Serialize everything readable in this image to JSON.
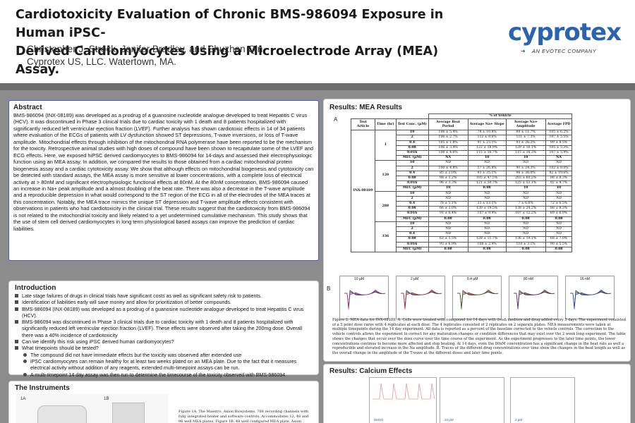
{
  "header": {
    "title_line1": "Cardiotoxicity Evaluation of Chronic BMS-986094 Exposure in Human iPSC-",
    "title_line2": "Derived Cardiomyocytes Using a Microelectrode Array (MEA) Assay.",
    "authors": "Christopher J. Strock, Jenifer Bradley, and Shuzhen Qin",
    "affiliation": "Cyprotex US, LLC.  Watertown, MA."
  },
  "logo": {
    "name": "cyprotex",
    "tagline": "AN EVOTEC COMPANY",
    "color": "#2a63b0"
  },
  "abstract": {
    "heading": "Abstract",
    "body": "BMS-986094 (INX-08189) was developed as a prodrug of a guanosine nucleotide analogue developed to treat Hepatitis C virus (HCV).  It was discontinued in Phase 3 clinical trials due to cardiac toxicity with 1 death and 8 patients hospitalized with significantly reduced left ventricular ejection fraction (LVEF).  Further analysis has shown cardiotoxic effects in 14 of 34 patients where evaluation of the ECGs of patients with LV dysfunction showed ST depressions, T-wave inversions, or loss of T-wave amplitude.  Mitochondrial effects through inhibition of the mitochondrial RNA polymerase have been reported to be the mechanism for the toxicity.  Retrospective animal studies with high doses of compound have been shown to recapitulate some of the LVEF and ECG effects.  Here, we exposed hiPSC derived cardiomyocytes to BMS-986094 for 14-days and assessed their electrophysiologic function using an MEA assay. In addition, we compared the results to  those obtained from a cardiac mitochondrial protein biogenesis assay and a cardiac cytotoxicity assay.  We show that although effects on mitochondrial biogenesis and cytotoxicity can be detected with standard assays, the MEA assay is more sensitive at lower concentrations, with a complete loss of electrical activity at > 80nM and significant electrophysiologic functional effects at 80nM.   At the 80nM concentration, BMS-986094 caused an increase in Na+ peak amplitude and a almost doubling of the beat rate.  There was also a decrease in the T-wave amplitude and a reproducible depression in what would correspond to the ST region of the ECG in all of the electrodes of the MEA traces at this concentration.  Notably, the MEA trace mimics the unique ST depression and T-wave amplitude effects consistent with observations in patients who had cardiotoxicity in the clinical trial.  These results suggest that the cardiotoxicity from BMS-986094 is not related to the mitochondrial toxicity and likely related to a yet undetermined cumulative mechanism.  This study shows that the use of stem cell derived cardiomyocytes in long term physiological based assays can improve the prediction of cardiac liabilities."
  },
  "introduction": {
    "heading": "Introduction",
    "items": [
      {
        "level": 1,
        "text": "Late stage failures of drugs in clinical trials have significant costs as well as significant safety risk to patients."
      },
      {
        "level": 1,
        "text": "Identification of liabilities early will save money and allow for prioritization of better compounds."
      },
      {
        "level": 1,
        "text": "BMS-986094 (INX-08189) was developed as a prodrug of a guanosine nucleotide analogue developed to treat Hepatitis C virus (HCV)."
      },
      {
        "level": 1,
        "text": "BMS-986094 was discontinued in Phase 3 clinical trials due to cardiac toxicity with 1 death and 8 patients hospitalized with significantly reduced left ventricular ejection fraction (LVEF).  These effects were observed after taking the 200mg dose.  Overall there was a 40% incidence of cardiotoxicity"
      },
      {
        "level": 1,
        "text": "Can we identify this risk using iPSC derived human cardiomyocytes?"
      },
      {
        "level": 1,
        "text": "What timepoints should be tested?"
      },
      {
        "level": 2,
        "text": "The compound did not have immediate effects but the toxicity was observed after extended use"
      },
      {
        "level": 2,
        "text": "iPSC cardiomyocytes can remain healthy for at least two weeks plated on an MEA plate.  Due to the fact that it measures electrical activity without addition of any reagents, extended multi-timepoint assays can be run."
      },
      {
        "level": 2,
        "text": "A multi-timepoint 14 day assay was then run to determine the timecourse of the toxicity observed with BMS-986094"
      }
    ]
  },
  "instruments": {
    "heading": "The Instruments",
    "label_a": "1A",
    "label_b": "1B",
    "caption": "Figure 1A. The Maestro, Axion Biosystems.  768 recording channels with fully integrated heater and software controls. Accommodates 12, 48 and 96 well MEA plates.  Figure 1B.  48 well configured MEA plate, Axion Biosystems.  16 microelectrodes per well, ANSI compliant,"
  },
  "mea": {
    "heading": "Results: MEA Results",
    "panel_a": "A",
    "panel_b": "B",
    "table": {
      "group_header": "% of Vehicle",
      "columns": [
        "Test Article",
        "Time (hr)",
        "Test Conc. (µM)",
        "Average Beat Period",
        "Average Na+ Slope",
        "Average Na+ Amplitude",
        "Average FPD"
      ],
      "article": "INX-08189",
      "blocks": [
        {
          "time": "1",
          "rows": [
            [
              "10",
              "106 ± 5.4%",
              "78 ± 10.8%",
              "80 ± 11.7%",
              "105 ± 6.2%"
            ],
            [
              "2",
              "106 ± 2.7%",
              "112 ± 9.6%",
              "111 ± 7.3%",
              "107 ± 5.5%"
            ],
            [
              "0.4",
              "105 ± 1.8%",
              "91 ± 23.1%",
              "93 ± 26.2%",
              "99 ± 8.5%"
            ],
            [
              "0.08",
              "106 ± 3.4%",
              "122 ± 18.9%",
              "129 ± 16.1%",
              "105 ± 5.3%"
            ],
            [
              "0.016",
              "106 ± 4.6%",
              "115 ± 16.7%",
              "115 ± 16.3%",
              "107 ± 5.9%"
            ],
            [
              "MEC (µM)",
              "NA",
              "10",
              "10",
              "NA"
            ]
          ]
        },
        {
          "time": "120",
          "rows": [
            [
              "10",
              "ND",
              "ND",
              "ND",
              "ND"
            ],
            [
              "2",
              "100 ± 4.8%",
              "57 ± 26.8%",
              "41 ± 24.3%",
              "102 ± 8.0%"
            ],
            [
              "0.4",
              "85 ± 2.0%",
              "93 ± 35.1%",
              "96 ± 36.0%",
              "82 ± 10.6%"
            ],
            [
              "0.08",
              "88 ± 3.2%",
              "105 ± 47.5%",
              "203 ± 60.5%",
              "86 ± 8.3%"
            ],
            [
              "0.016",
              "96 ± 3.3%",
              "121 ± 50.7%",
              "125 ± 53.1%",
              "92 ± 4.7%"
            ],
            [
              "MEC (µM)",
              "10",
              "0.08",
              "10",
              "10"
            ]
          ]
        },
        {
          "time": "288",
          "rows": [
            [
              "10",
              "ND",
              "ND",
              "ND",
              "ND"
            ],
            [
              "2",
              "ND",
              "ND",
              "ND",
              "ND"
            ],
            [
              "0.4",
              "78 ± 5.1%",
              "33 ± 13.1%",
              "7 ± 6.6%",
              "72 ± 6.5%"
            ],
            [
              "0.08",
              "66 ± 3.0%",
              "130 ± 19.5%",
              "138 ± 24.2%",
              "86 ± 8.3%"
            ],
            [
              "0.016",
              "91 ± 6.4%",
              "107 ± 9.9%",
              "107 ± 12.2%",
              "89 ± 6.9%"
            ],
            [
              "MEC (µM)",
              "0.08",
              "0.08",
              "0.08",
              "0.08"
            ]
          ]
        },
        {
          "time": "336",
          "rows": [
            [
              "10",
              "ND",
              "ND",
              "ND",
              "ND"
            ],
            [
              "2",
              "ND",
              "ND",
              "ND",
              "ND"
            ],
            [
              "0.4",
              "ND",
              "ND",
              "ND",
              "ND"
            ],
            [
              "0.08",
              "62 ± 5.5%",
              "128 ± 11.7%",
              "136 ± 19.1%",
              "68 ± 7.0%"
            ],
            [
              "0.016",
              "93 ± 6.9%",
              "108 ± 2.9%",
              "110 ± 3.1%",
              "90 ± 5.5%"
            ],
            [
              "MEC (µM)",
              "0.08",
              "0.08",
              "0.08",
              "0.08"
            ]
          ]
        }
      ]
    },
    "traces": [
      {
        "label": "10 µM"
      },
      {
        "label": "2 µM"
      },
      {
        "label": "0.4 µM"
      },
      {
        "label": "80 nM"
      },
      {
        "label": "16 nM"
      }
    ],
    "caption": "Figure 2. MEA data for INX-08189.  A. Cells were treated with compound for 14 days with fresh medium and drug added every 3 days.  The experiment consisted of a 5 point dose curve with 4 replicates at each dose.  The 4 replicates consisted of 2 replicates on 2 separate plates.  MEA measurements were taken at multiple timepoints during the 14 day experiment.  All data is reported as a percent of the baseline corrected to the vehicle controls.  The correction to the vehicle controls allows the experiment to correct for any maturation changes or condition differences that may exist over the 2 week long experiment.  The table shows the changes that occur over the dose curve over the time course of the experiment.  As the experiment progresses to the later time points, the lower concentrations continue to become more affected and stop beating.  At 14 days, even the 80nM concentration has a significant change in the beat rate as well a reproducible and elevated increase in the Na amplitude.  B.  Traces of the different drug concentrations over time show the changes in the beat length as well as the overall change in the amplitude of the T-wave at the different doses and later time points."
  },
  "calcium": {
    "heading": "Results: Calcium Effects",
    "labels": [
      "DMSO",
      "10 µM",
      "2 µM"
    ]
  }
}
